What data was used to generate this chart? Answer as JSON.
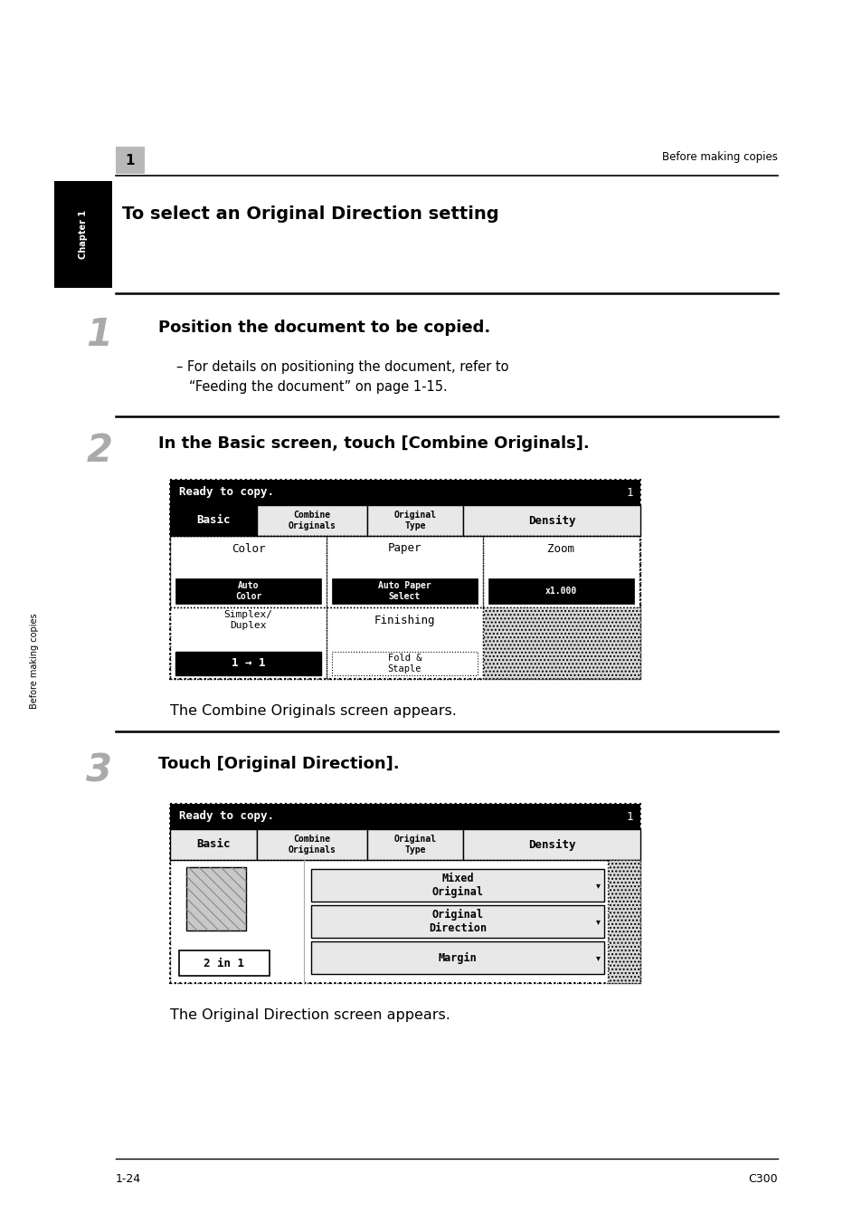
{
  "bg_color": "#ffffff",
  "page_width": 9.54,
  "page_height": 13.5,
  "header_text": "Before making copies",
  "header_num": "1",
  "chapter_tab_text": "Chapter 1",
  "side_tab_text": "Before making copies",
  "title": "To select an Original Direction setting",
  "step1_num": "1",
  "step1_text": "Position the document to be copied.",
  "step1_sub1": "– For details on positioning the document, refer to",
  "step1_sub2": "   “Feeding the document” on page 1-15.",
  "step2_num": "2",
  "step2_text": "In the Basic screen, touch [Combine Originals].",
  "screen1_status": "Ready to copy.",
  "screen1_page_num": "1",
  "screen1_tab0": "Basic",
  "screen1_tab1": "Combine\nOriginals",
  "screen1_tab2": "Original\nType",
  "screen1_tab3": "Density",
  "screen1_col0_top": "Color",
  "screen1_col0_bot": "Auto\nColor",
  "screen1_col1_top": "Paper",
  "screen1_col1_bot": "Auto Paper\nSelect",
  "screen1_col2_top": "Zoom",
  "screen1_col2_bot": "x1.000",
  "screen1_row2_left_top": "Simplex/\nDuplex",
  "screen1_row2_left_bot": "1 → 1",
  "screen1_row2_mid_top": "Finishing",
  "screen1_row2_mid_bot": "Fold &\nStaple",
  "step2_caption": "The Combine Originals screen appears.",
  "step3_num": "3",
  "step3_text": "Touch [Original Direction].",
  "screen2_status": "Ready to copy.",
  "screen2_page_num": "1",
  "screen2_tab0": "Basic",
  "screen2_tab1": "Combine\nOriginals",
  "screen2_tab2": "Original\nType",
  "screen2_tab3": "Density",
  "screen2_btn0": "Mixed\nOriginal",
  "screen2_btn1": "Original\nDirection",
  "screen2_btn2": "Margin",
  "screen2_left_label": "2 in 1",
  "step3_caption": "The Original Direction screen appears.",
  "footer_left": "1-24",
  "footer_right": "C300"
}
